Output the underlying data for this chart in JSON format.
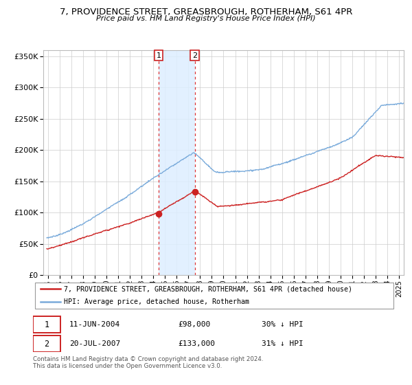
{
  "title": "7, PROVIDENCE STREET, GREASBROUGH, ROTHERHAM, S61 4PR",
  "subtitle": "Price paid vs. HM Land Registry's House Price Index (HPI)",
  "legend_line1": "7, PROVIDENCE STREET, GREASBROUGH, ROTHERHAM, S61 4PR (detached house)",
  "legend_line2": "HPI: Average price, detached house, Rotherham",
  "sale1_date": "11-JUN-2004",
  "sale1_price": "£98,000",
  "sale1_hpi": "30% ↓ HPI",
  "sale2_date": "20-JUL-2007",
  "sale2_price": "£133,000",
  "sale2_hpi": "31% ↓ HPI",
  "footer": "Contains HM Land Registry data © Crown copyright and database right 2024.\nThis data is licensed under the Open Government Licence v3.0.",
  "hpi_color": "#7aabdb",
  "price_color": "#cc2222",
  "shade_color": "#ddeeff",
  "vline_color": "#dd3333",
  "box_color": "#cc2222",
  "ylim": [
    0,
    360000
  ],
  "yticks": [
    0,
    50000,
    100000,
    150000,
    200000,
    250000,
    300000,
    350000
  ],
  "sale1_year": 2004.45,
  "sale1_price_val": 98000,
  "sale2_year": 2007.54,
  "sale2_price_val": 133000,
  "xmin": 1994.6,
  "xmax": 2025.4
}
